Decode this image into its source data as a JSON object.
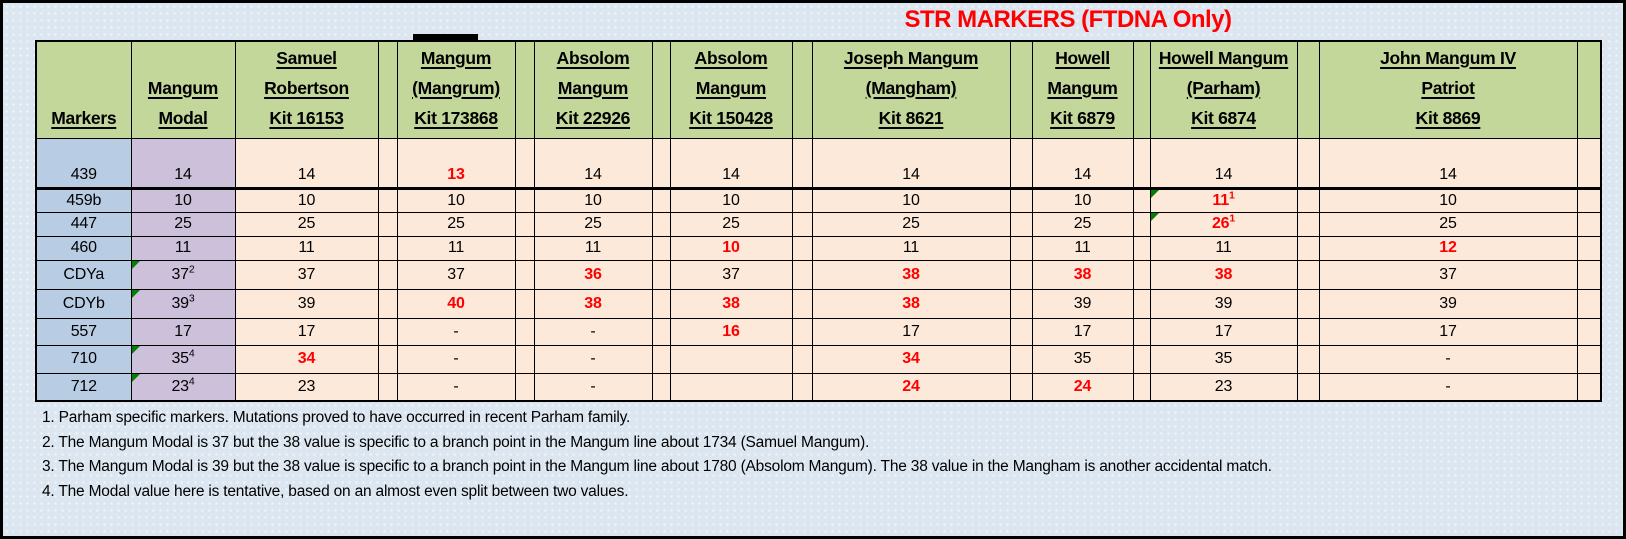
{
  "title": "STR MARKERS (FTDNA Only)",
  "colors": {
    "header_green": "#c4d79b",
    "marker_blue": "#b8cce4",
    "modal_purple": "#ccc0da",
    "cell_peach": "#fde9d9",
    "background": "#dce6f1",
    "mutation_red": "#ff0000",
    "flag_green": "#067d06",
    "border_black": "#000000"
  },
  "chart_data": {
    "type": "table",
    "title": "STR MARKERS (FTDNA Only)",
    "columns": {
      "marker_header": "Markers",
      "modal_header": [
        "Mangum",
        "Modal"
      ],
      "kits": [
        {
          "lines": [
            "Samuel",
            "Robertson",
            "Kit 16153"
          ]
        },
        {
          "lines": [
            "Mangum",
            "(Mangrum)",
            "Kit 173868"
          ]
        },
        {
          "lines": [
            "Absolom",
            "Mangum",
            "Kit 22926"
          ]
        },
        {
          "lines": [
            "Absolom",
            "Mangum",
            "Kit 150428"
          ]
        },
        {
          "lines": [
            "Joseph Mangum",
            "(Mangham)",
            "Kit 8621"
          ]
        },
        {
          "lines": [
            "Howell",
            "Mangum",
            "Kit 6879"
          ]
        },
        {
          "lines": [
            "Howell Mangum",
            "(Parham)",
            "Kit 6874"
          ]
        },
        {
          "lines": [
            "John Mangum IV",
            "Patriot",
            "Kit 8869"
          ]
        }
      ]
    },
    "rows": [
      {
        "marker": "439",
        "modal": {
          "v": "14"
        },
        "cells": [
          {
            "v": "14"
          },
          {
            "v": "13",
            "red": true
          },
          {
            "v": "14"
          },
          {
            "v": "14"
          },
          {
            "v": "14"
          },
          {
            "v": "14"
          },
          {
            "v": "14"
          },
          {
            "v": "14"
          }
        ]
      },
      {
        "marker": "459b",
        "modal": {
          "v": "10"
        },
        "cells": [
          {
            "v": "10"
          },
          {
            "v": "10"
          },
          {
            "v": "10"
          },
          {
            "v": "10"
          },
          {
            "v": "10"
          },
          {
            "v": "10"
          },
          {
            "v": "11",
            "sup": "1",
            "red": true,
            "flag": true
          },
          {
            "v": "10"
          }
        ]
      },
      {
        "marker": "447",
        "modal": {
          "v": "25"
        },
        "cells": [
          {
            "v": "25"
          },
          {
            "v": "25"
          },
          {
            "v": "25"
          },
          {
            "v": "25"
          },
          {
            "v": "25"
          },
          {
            "v": "25"
          },
          {
            "v": "26",
            "sup": "1",
            "red": true,
            "flag": true
          },
          {
            "v": "25"
          }
        ]
      },
      {
        "marker": "460",
        "modal": {
          "v": "11"
        },
        "cells": [
          {
            "v": "11"
          },
          {
            "v": "11"
          },
          {
            "v": "11"
          },
          {
            "v": "10",
            "red": true
          },
          {
            "v": "11"
          },
          {
            "v": "11"
          },
          {
            "v": "11"
          },
          {
            "v": "12",
            "red": true
          }
        ]
      },
      {
        "marker": "CDYa",
        "modal": {
          "v": "37",
          "sup": "2",
          "flag": true
        },
        "cells": [
          {
            "v": "37"
          },
          {
            "v": "37"
          },
          {
            "v": "36",
            "red": true
          },
          {
            "v": "37"
          },
          {
            "v": "38",
            "red": true
          },
          {
            "v": "38",
            "red": true
          },
          {
            "v": "38",
            "red": true
          },
          {
            "v": "37"
          }
        ]
      },
      {
        "marker": "CDYb",
        "modal": {
          "v": "39",
          "sup": "3",
          "flag": true
        },
        "cells": [
          {
            "v": "39"
          },
          {
            "v": "40",
            "red": true
          },
          {
            "v": "38",
            "red": true
          },
          {
            "v": "38",
            "red": true
          },
          {
            "v": "38",
            "red": true
          },
          {
            "v": "39"
          },
          {
            "v": "39"
          },
          {
            "v": "39"
          }
        ]
      },
      {
        "marker": "557",
        "modal": {
          "v": "17"
        },
        "cells": [
          {
            "v": "17"
          },
          {
            "v": "-"
          },
          {
            "v": "-"
          },
          {
            "v": "16",
            "red": true
          },
          {
            "v": "17"
          },
          {
            "v": "17"
          },
          {
            "v": "17"
          },
          {
            "v": "17"
          }
        ]
      },
      {
        "marker": "710",
        "modal": {
          "v": "35",
          "sup": "4",
          "flag": true
        },
        "cells": [
          {
            "v": "34",
            "red": true
          },
          {
            "v": "-"
          },
          {
            "v": "-"
          },
          {
            "v": ""
          },
          {
            "v": "34",
            "red": true
          },
          {
            "v": "35"
          },
          {
            "v": "35"
          },
          {
            "v": "-"
          }
        ]
      },
      {
        "marker": "712",
        "modal": {
          "v": "23",
          "sup": "4",
          "flag": true
        },
        "cells": [
          {
            "v": "23"
          },
          {
            "v": "-"
          },
          {
            "v": "-"
          },
          {
            "v": ""
          },
          {
            "v": "24",
            "red": true
          },
          {
            "v": "24",
            "red": true
          },
          {
            "v": "23"
          },
          {
            "v": "-"
          }
        ]
      }
    ],
    "footnotes": [
      "1. Parham specific markers. Mutations proved to have occurred in recent Parham family.",
      "2. The Mangum Modal is 37 but the 38 value is specific to a branch point in the Mangum line about 1734 (Samuel Mangum).",
      "3. The Mangum Modal is 39 but the 38 value is specific to a branch point in the Mangum line about 1780 (Absolom Mangum). The 38 value in the Mangham is another accidental match.",
      "4. The Modal value here is tentative, based on an almost even split between two values."
    ]
  }
}
